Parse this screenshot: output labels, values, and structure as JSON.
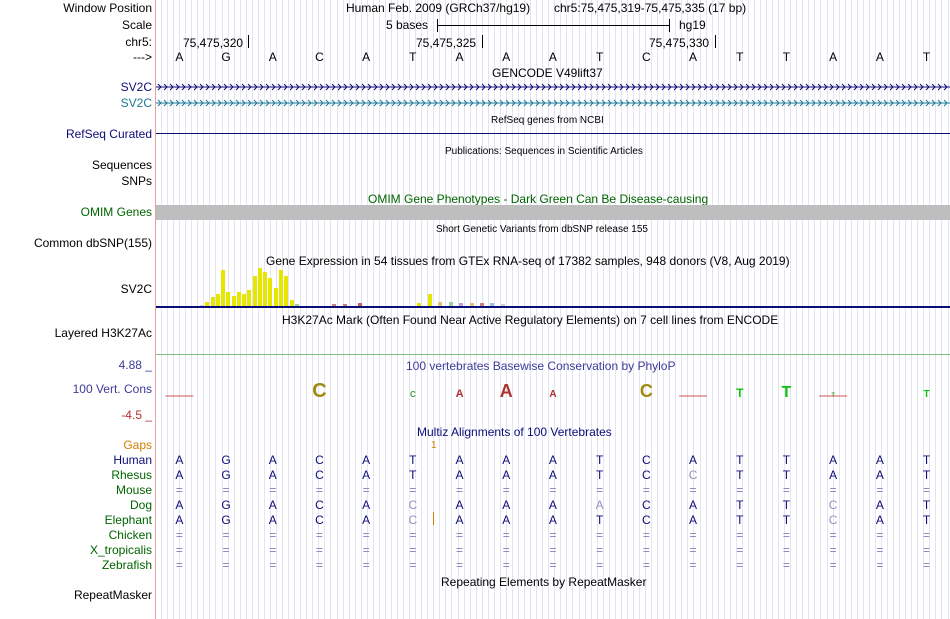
{
  "labels": {
    "window_position": "Window Position",
    "scale": "Scale",
    "chrom": "chr5:",
    "strand": "--->",
    "sv2c_1": "SV2C",
    "sv2c_2": "SV2C",
    "refseq": "RefSeq Curated",
    "sequences": "Sequences",
    "snps": "SNPs",
    "omim": "OMIM Genes",
    "common_dbsnp": "Common dbSNP(155)",
    "gtex_sv2c": "SV2C",
    "layered": "Layered H3K27Ac",
    "phylop_max": "4.88 _",
    "cons": "100 Vert. Cons",
    "phylop_min": "-4.5 _",
    "gaps": "Gaps",
    "species": [
      "Human",
      "Rhesus",
      "Mouse",
      "Dog",
      "Elephant",
      "Chicken",
      "X_tropicalis",
      "Zebrafish"
    ],
    "repeatmasker": "RepeatMasker"
  },
  "header": {
    "assembly": "Human Feb. 2009 (GRCh37/hg19)",
    "position": "chr5:75,475,319-75,475,335 (17 bp)",
    "scale_text": "5 bases",
    "scale_db": "hg19",
    "ticks": [
      "75,475,320",
      "75,475,325",
      "75,475,330"
    ]
  },
  "bases": [
    "A",
    "G",
    "A",
    "C",
    "A",
    "T",
    "A",
    "A",
    "A",
    "T",
    "C",
    "A",
    "T",
    "T",
    "A",
    "A",
    "T"
  ],
  "tracks": {
    "gencode": "GENCODE V49lift37",
    "refseq_ncbi": "RefSeq genes from NCBI",
    "publications": "Publications: Sequences in Scientific Articles",
    "omim_title": "OMIM Gene Phenotypes - Dark Green Can Be Disease-causing",
    "dbsnp_title": "Short Genetic Variants from dbSNP release 155",
    "gtex_title": "Gene Expression in 54 tissues from GTEx RNA-seq of 17382 samples, 948 donors (V8, Aug 2019)",
    "h3k27ac_title": "H3K27Ac Mark (Often Found Near Active Regulatory Elements) on 7 cell lines from ENCODE",
    "phylop_title": "100 vertebrates Basewise Conservation by PhyloP",
    "multiz_title": "Multiz Alignments of 100 Vertebrates",
    "repeat_title": "Repeating Elements by RepeatMasker",
    "gap_mark": "1"
  },
  "alignment": {
    "Human": [
      "A",
      "G",
      "A",
      "C",
      "A",
      "T",
      "A",
      "A",
      "A",
      "T",
      "C",
      "A",
      "T",
      "T",
      "A",
      "A",
      "T"
    ],
    "Rhesus": [
      "A",
      "G",
      "A",
      "C",
      "A",
      "T",
      "A",
      "A",
      "A",
      "T",
      "C",
      "C",
      "T",
      "T",
      "A",
      "A",
      "T"
    ],
    "Mouse": [
      "=",
      "=",
      "=",
      "=",
      "=",
      "=",
      "=",
      "=",
      "=",
      "=",
      "=",
      "=",
      "=",
      "=",
      "=",
      "=",
      "="
    ],
    "Dog": [
      "A",
      "G",
      "A",
      "C",
      "A",
      "C",
      "A",
      "A",
      "A",
      "A",
      "C",
      "A",
      "T",
      "T",
      "C",
      "A",
      "T"
    ],
    "Elephant": [
      "A",
      "G",
      "A",
      "C",
      "A",
      "C",
      "A",
      "A",
      "A",
      "T",
      "C",
      "A",
      "T",
      "T",
      "C",
      "A",
      "T"
    ],
    "Chicken": [
      "=",
      "=",
      "=",
      "=",
      "=",
      "=",
      "=",
      "=",
      "=",
      "=",
      "=",
      "=",
      "=",
      "=",
      "=",
      "=",
      "="
    ],
    "X_tropicalis": [
      "=",
      "=",
      "=",
      "=",
      "=",
      "=",
      "=",
      "=",
      "=",
      "=",
      "=",
      "=",
      "=",
      "=",
      "=",
      "=",
      "="
    ],
    "Zebrafish": [
      "=",
      "=",
      "=",
      "=",
      "=",
      "=",
      "=",
      "=",
      "=",
      "=",
      "=",
      "=",
      "=",
      "=",
      "=",
      "=",
      "="
    ]
  },
  "colors": {
    "gencode_gene": "#0c0c78",
    "gencode_gene2": "#1a7a9a",
    "refseq_gene": "#0c0c78",
    "omim_green": "#006400",
    "omim_bar": "#bebebe",
    "gtex_yellow": "#e6e600",
    "phylop_pos": "#3a3a9a",
    "phylop_neg": "#b03030",
    "layered_line": "#7fbf7f",
    "gaps": "#d08000",
    "species_label": "#006400",
    "human_label": "#0c0c78",
    "base_color": "#0c0c78",
    "scale_accent": "#000000"
  }
}
